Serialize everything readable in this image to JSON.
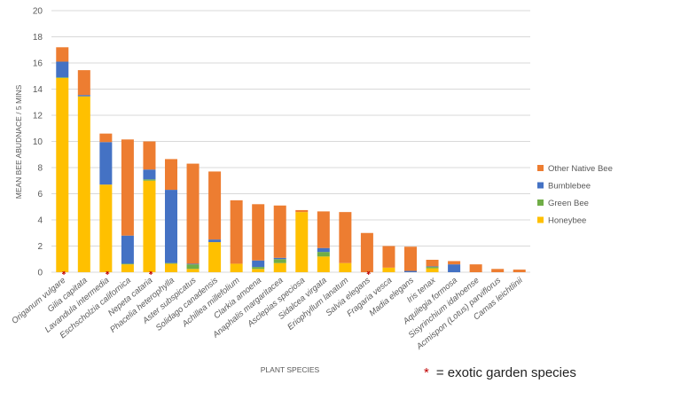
{
  "chart_data": {
    "type": "bar",
    "stacked": true,
    "xlabel": "PLANT SPECIES",
    "ylabel": "MEAN BEE ABUDNACE / 5 MINS",
    "ylim": [
      0,
      20
    ],
    "yticks": [
      0,
      2,
      4,
      6,
      8,
      10,
      12,
      14,
      16,
      18,
      20
    ],
    "grid": true,
    "legend_position": "right",
    "categories": [
      "Origanum vulgare",
      "Gilia capitata",
      "Lavandula intermedia",
      "Eschscholzia californica",
      "Nepeta cataria",
      "Phacelia heterophylla",
      "Aster subspicatus",
      "Solidago canadensis",
      "Achillea millefolium",
      "Clarkia amoena",
      "Anaphalis margaritacea",
      "Asclepias speciosa",
      "Sidalcea virgata",
      "Eriophyllum lanatum",
      "Salvia elegans",
      "Fragaria vesca",
      "Madia elegans",
      "Iris tenax",
      "Aquilegia formosa",
      "Sisyrinchium idahoense",
      "Acmispon (Lotus) parviflorus",
      "Camas leichtlinii"
    ],
    "exotic": [
      true,
      false,
      true,
      false,
      true,
      false,
      false,
      false,
      false,
      false,
      false,
      false,
      false,
      false,
      true,
      false,
      false,
      false,
      false,
      false,
      false,
      false
    ],
    "series": [
      {
        "name": "Honeybee",
        "color": "#FFC000",
        "values": [
          14.85,
          13.45,
          6.7,
          0.6,
          7.0,
          0.65,
          0.25,
          2.3,
          0.65,
          0.25,
          0.7,
          4.6,
          1.2,
          0.7,
          0,
          0.35,
          0,
          0.3,
          0,
          0,
          0,
          0
        ]
      },
      {
        "name": "Green Bee",
        "color": "#70AD47",
        "values": [
          0.05,
          0,
          0,
          0.05,
          0.1,
          0.05,
          0.35,
          0,
          0,
          0.15,
          0.3,
          0,
          0.35,
          0,
          0,
          0,
          0,
          0.1,
          0,
          0,
          0,
          0
        ]
      },
      {
        "name": "Bumblebee",
        "color": "#4472C4",
        "values": [
          1.2,
          0.1,
          3.25,
          2.15,
          0.75,
          5.6,
          0.05,
          0.2,
          0,
          0.5,
          0.1,
          0,
          0.3,
          0,
          0,
          0,
          0.1,
          0.05,
          0.6,
          0,
          0,
          0
        ]
      },
      {
        "name": "Other Native Bee",
        "color": "#ED7D31",
        "values": [
          1.1,
          1.9,
          0.65,
          7.35,
          2.15,
          2.35,
          7.65,
          5.2,
          4.85,
          4.3,
          4.0,
          0.15,
          2.8,
          3.9,
          3.0,
          1.65,
          1.85,
          0.5,
          0.25,
          0.6,
          0.25,
          0.2
        ]
      }
    ],
    "annotation": {
      "symbol": "*",
      "text": "= exotic garden species",
      "color": "#C00000"
    }
  }
}
